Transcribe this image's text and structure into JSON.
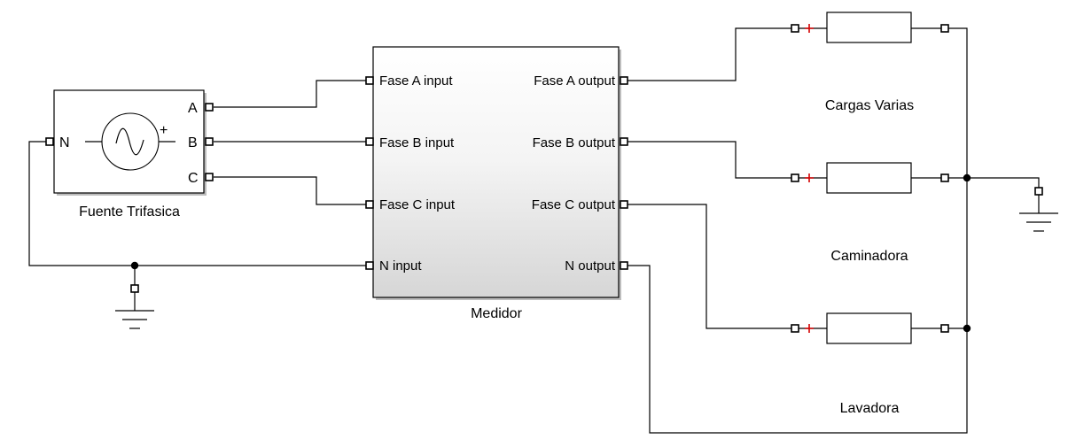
{
  "source": {
    "title": "Fuente Trifasica",
    "port_neutral": "N",
    "port_a": "A",
    "port_b": "B",
    "port_c": "C",
    "polarity_symbol": "+"
  },
  "meter": {
    "title": "Medidor",
    "inputs": [
      "Fase A input",
      "Fase B input",
      "Fase C input",
      "N input"
    ],
    "outputs": [
      "Fase A output",
      "Fase B output",
      "Fase C output",
      "N output"
    ]
  },
  "loads": [
    {
      "label": "Cargas Varias"
    },
    {
      "label": "Caminadora"
    },
    {
      "label": "Lavadora"
    }
  ],
  "colors": {
    "wire": "#000000",
    "polarity_mark": "#d40000",
    "meter_gradient_top": "#ffffff",
    "meter_gradient_bottom": "#d6d6d6"
  }
}
